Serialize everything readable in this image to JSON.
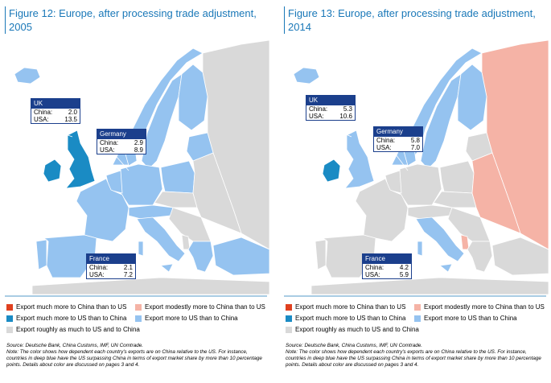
{
  "figures": [
    {
      "title": "Figure 12: Europe, after processing trade adjustment, 2005",
      "callouts": [
        {
          "name": "UK",
          "rows": [
            [
              "China:",
              "2.0"
            ],
            [
              "USA:",
              "13.5"
            ]
          ]
        },
        {
          "name": "Germany",
          "rows": [
            [
              "China:",
              "2.9"
            ],
            [
              "USA:",
              "8.9"
            ]
          ]
        },
        {
          "name": "France",
          "rows": [
            [
              "China:",
              "2.1"
            ],
            [
              "USA:",
              "7.2"
            ]
          ]
        }
      ],
      "legend": [
        {
          "label": "Export much more to China than to US",
          "color": "#e0401f"
        },
        {
          "label": "Export modestly more to China than to US",
          "color": "#f5b3a6"
        },
        {
          "label": "Export much more to US than to China",
          "color": "#1a8bc4"
        },
        {
          "label": "Export more to US than to China",
          "color": "#95c3f0"
        },
        {
          "label": "Export roughly as much to US and to China",
          "color": "#d9d9d9"
        }
      ],
      "source": "Source: Deutsche Bank, China Customs, IMF, UN Comtrade.",
      "note": "Note: The color shows how dependent each country's exports are on China relative to the US. For instance, countries in deep blue have the US surpassing China in terms of export market share by more than 10 percentage points. Details about color are discussed on pages 3 and 4."
    },
    {
      "title": "Figure 13: Europe, after processing trade adjustment, 2014",
      "callouts": [
        {
          "name": "UK",
          "rows": [
            [
              "China:",
              "5.3"
            ],
            [
              "USA:",
              "10.6"
            ]
          ]
        },
        {
          "name": "Germany",
          "rows": [
            [
              "China:",
              "5.8"
            ],
            [
              "USA:",
              "7.0"
            ]
          ]
        },
        {
          "name": "France",
          "rows": [
            [
              "China:",
              "4.2"
            ],
            [
              "USA:",
              "5.9"
            ]
          ]
        }
      ],
      "legend": [
        {
          "label": "Export much more to China than to US",
          "color": "#e0401f"
        },
        {
          "label": "Export modestly more to China than to US",
          "color": "#f5b3a6"
        },
        {
          "label": "Export much more to US than to China",
          "color": "#1a8bc4"
        },
        {
          "label": "Export more to US than to China",
          "color": "#95c3f0"
        },
        {
          "label": "Export roughly as much to US and to China",
          "color": "#d9d9d9"
        }
      ],
      "source": "Source: Deutsche Bank, China Customs, IMF, UN Comtrade.",
      "note": "Note: The color shows how dependent each country's exports are on China relative to the US. For instance, countries in deep blue have the US surpassing China in terms of export market share by more than 10 percentage points. Details about color are discussed on pages 3 and 4."
    }
  ]
}
